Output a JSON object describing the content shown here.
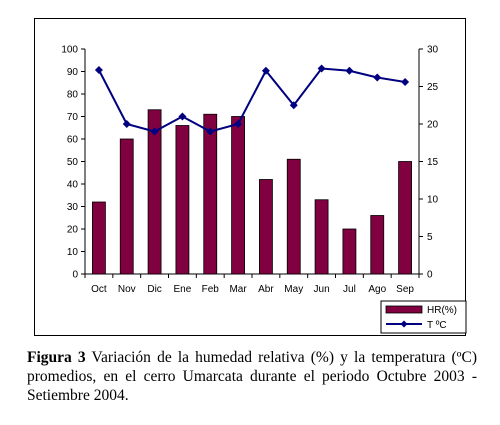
{
  "chart_data": {
    "type": "bar+line",
    "categories": [
      "Oct",
      "Nov",
      "Dic",
      "Ene",
      "Feb",
      "Mar",
      "Abr",
      "May",
      "Jun",
      "Jul",
      "Ago",
      "Sep"
    ],
    "series": [
      {
        "name": "HR(%)",
        "type": "bar",
        "axis": "left",
        "color": "#800040",
        "values": [
          32,
          60,
          73,
          66,
          71,
          70,
          42,
          51,
          33,
          20,
          26,
          50
        ]
      },
      {
        "name": "T ºC",
        "type": "line",
        "axis": "right",
        "color": "#000080",
        "values": [
          27.2,
          20,
          19,
          21,
          19,
          20,
          27.1,
          22.5,
          27.4,
          27.1,
          26.2,
          25.6
        ]
      }
    ],
    "y_left": {
      "min": 0,
      "max": 100,
      "step": 10
    },
    "y_right": {
      "min": 0,
      "max": 30,
      "step": 5
    },
    "grid": false,
    "legend_position": "bottom-right"
  },
  "caption": {
    "label": "Figura 3",
    "text": "Variación de la humedad relativa (%) y la temperatura (ºC) promedios, en el cerro Umarcata durante el periodo Octubre 2003 - Setiembre 2004."
  }
}
